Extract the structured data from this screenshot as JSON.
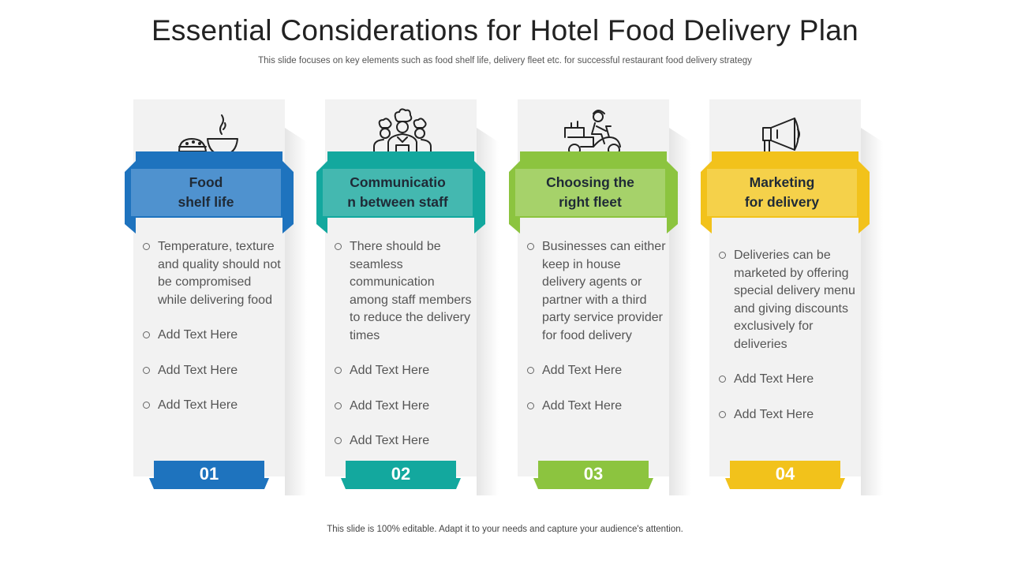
{
  "slide": {
    "title": "Essential Considerations for Hotel Food Delivery Plan",
    "subtitle": "This slide focuses on key elements such as food shelf life, delivery fleet etc. for successful restaurant food delivery strategy",
    "footer": "This slide is 100% editable. Adapt it to your needs and capture your audience's attention."
  },
  "cards": [
    {
      "icon": "food-bowl-icon",
      "heading": "Food\nshelf life",
      "number": "01",
      "color_dark": "#1e73be",
      "color_light": "#4f92cf",
      "bullets": [
        "Temperature, texture and quality should not be compromised while delivering food",
        "Add Text Here",
        "Add Text Here",
        "Add Text Here"
      ]
    },
    {
      "icon": "chefs-team-icon",
      "heading": "Communicatio\nn between staff",
      "number": "02",
      "color_dark": "#13a89e",
      "color_light": "#44b8b0",
      "bullets": [
        "There should be seamless communication among staff members to reduce the delivery times",
        "Add Text Here",
        "Add Text Here",
        "Add Text Here"
      ]
    },
    {
      "icon": "delivery-scooter-icon",
      "heading": "Choosing the\nright fleet",
      "number": "03",
      "color_dark": "#8cc43f",
      "color_light": "#a6d26a",
      "bullets": [
        "Businesses can either keep in house delivery agents or partner with a third party service provider for food delivery",
        "Add Text Here",
        "Add Text Here"
      ]
    },
    {
      "icon": "megaphone-icon",
      "heading": "Marketing\nfor delivery",
      "number": "04",
      "color_dark": "#f2c21b",
      "color_light": "#f5d14a",
      "bullets": [
        "Deliveries can be marketed by offering special delivery menu and giving discounts exclusively for deliveries",
        "Add Text Here",
        "Add Text Here"
      ]
    }
  ]
}
